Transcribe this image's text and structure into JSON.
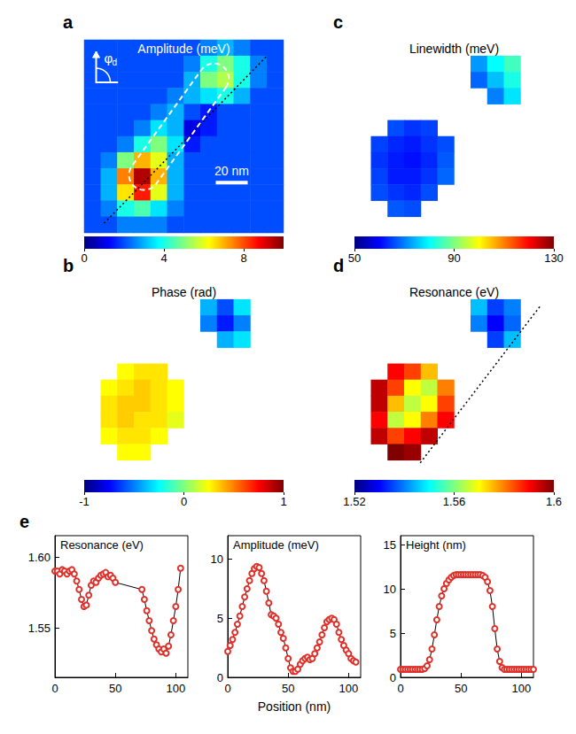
{
  "chart_data": [
    {
      "type": "heatmap",
      "panel": "a",
      "title": "Amplitude (meV)",
      "annotations": [
        "φd",
        "20 nm"
      ],
      "colorbar_range": [
        0,
        10
      ],
      "colorbar_ticks": [
        0,
        4,
        8
      ],
      "cells": [
        [
          2,
          2,
          2,
          2,
          2,
          2,
          2,
          2.5,
          3,
          2.5,
          2,
          2
        ],
        [
          2,
          2,
          2,
          2,
          2,
          2,
          2.5,
          4,
          5,
          4,
          2.5,
          2
        ],
        [
          2,
          2,
          2,
          2,
          2,
          2,
          3,
          5,
          5.5,
          4,
          2.5,
          2
        ],
        [
          2,
          2,
          2,
          2,
          2,
          2.5,
          3,
          3.5,
          4,
          3,
          2,
          2
        ],
        [
          2,
          2,
          2,
          2,
          2.5,
          3,
          2,
          1.5,
          2,
          2,
          2,
          2
        ],
        [
          2,
          2,
          2,
          2.5,
          3.5,
          3,
          1,
          1.5,
          2,
          2,
          2,
          2
        ],
        [
          2,
          2,
          2.5,
          4,
          5,
          3.5,
          1.5,
          2,
          2,
          2,
          2,
          2
        ],
        [
          2,
          2.5,
          5,
          7,
          6,
          3,
          2,
          2,
          2,
          2,
          2,
          2
        ],
        [
          2,
          3,
          7.5,
          9.5,
          7,
          3,
          2,
          2,
          2,
          2,
          2,
          2
        ],
        [
          2,
          3,
          6.5,
          8.5,
          6,
          3,
          2,
          2,
          2,
          2,
          2,
          2
        ],
        [
          2,
          2.5,
          4,
          4.5,
          3.5,
          2.5,
          2,
          2,
          2,
          2,
          2,
          2
        ],
        [
          2,
          2,
          2.5,
          2.5,
          2.5,
          2,
          2,
          2,
          2,
          2,
          2,
          2
        ]
      ]
    },
    {
      "type": "heatmap",
      "panel": "b",
      "title": "Phase (rad)",
      "colorbar_range": [
        -1,
        1
      ],
      "colorbar_ticks": [
        -1,
        0,
        1
      ],
      "cells": [
        [
          null,
          null,
          null,
          null,
          null,
          null,
          null,
          null,
          null,
          null,
          null,
          null
        ],
        [
          null,
          null,
          null,
          null,
          null,
          null,
          null,
          -0.4,
          -0.6,
          -0.3,
          null,
          null
        ],
        [
          null,
          null,
          null,
          null,
          null,
          null,
          null,
          -0.5,
          -0.7,
          -0.5,
          null,
          null
        ],
        [
          null,
          null,
          null,
          null,
          null,
          null,
          null,
          null,
          -0.4,
          -0.3,
          null,
          null
        ],
        [
          null,
          null,
          null,
          null,
          null,
          null,
          null,
          null,
          null,
          null,
          null,
          null
        ],
        [
          null,
          null,
          0.25,
          0.3,
          0.3,
          null,
          null,
          null,
          null,
          null,
          null,
          null
        ],
        [
          null,
          0.25,
          0.3,
          0.35,
          0.3,
          0.25,
          null,
          null,
          null,
          null,
          null,
          null
        ],
        [
          null,
          0.3,
          0.35,
          0.35,
          0.3,
          0.25,
          null,
          null,
          null,
          null,
          null,
          null
        ],
        [
          null,
          0.3,
          0.35,
          0.3,
          0.3,
          0.2,
          null,
          null,
          null,
          null,
          null,
          null
        ],
        [
          null,
          0.25,
          0.3,
          0.3,
          0.25,
          null,
          null,
          null,
          null,
          null,
          null,
          null
        ],
        [
          null,
          null,
          0.25,
          0.25,
          null,
          null,
          null,
          null,
          null,
          null,
          null,
          null
        ],
        [
          null,
          null,
          null,
          null,
          null,
          null,
          null,
          null,
          null,
          null,
          null,
          null
        ]
      ]
    },
    {
      "type": "heatmap",
      "panel": "c",
      "title": "Linewidth (meV)",
      "colorbar_range": [
        50,
        130
      ],
      "colorbar_ticks": [
        50,
        90,
        130
      ],
      "cells": [
        [
          null,
          null,
          null,
          null,
          null,
          null,
          null,
          null,
          null,
          null,
          null,
          null
        ],
        [
          null,
          null,
          null,
          null,
          null,
          null,
          null,
          72,
          80,
          85,
          null,
          null
        ],
        [
          null,
          null,
          null,
          null,
          null,
          null,
          null,
          68,
          75,
          82,
          null,
          null
        ],
        [
          null,
          null,
          null,
          null,
          null,
          null,
          null,
          null,
          70,
          78,
          null,
          null
        ],
        [
          null,
          null,
          null,
          null,
          null,
          null,
          null,
          null,
          null,
          null,
          null,
          null
        ],
        [
          null,
          null,
          66,
          64,
          65,
          null,
          null,
          null,
          null,
          null,
          null,
          null
        ],
        [
          null,
          65,
          63,
          62,
          64,
          66,
          null,
          null,
          null,
          null,
          null,
          null
        ],
        [
          null,
          64,
          62,
          61,
          63,
          67,
          null,
          null,
          null,
          null,
          null,
          null
        ],
        [
          null,
          65,
          62,
          62,
          64,
          68,
          null,
          null,
          null,
          null,
          null,
          null
        ],
        [
          null,
          66,
          64,
          63,
          66,
          null,
          null,
          null,
          null,
          null,
          null,
          null
        ],
        [
          null,
          null,
          67,
          66,
          null,
          null,
          null,
          null,
          null,
          null,
          null,
          null
        ],
        [
          null,
          null,
          null,
          null,
          null,
          null,
          null,
          null,
          null,
          null,
          null,
          null
        ]
      ]
    },
    {
      "type": "heatmap",
      "panel": "d",
      "title": "Resonance (eV)",
      "colorbar_range": [
        1.52,
        1.6
      ],
      "colorbar_ticks": [
        1.52,
        1.56,
        1.6
      ],
      "cells": [
        [
          null,
          null,
          null,
          null,
          null,
          null,
          null,
          null,
          null,
          null,
          null,
          null
        ],
        [
          null,
          null,
          null,
          null,
          null,
          null,
          null,
          1.545,
          1.535,
          1.54,
          null,
          null
        ],
        [
          null,
          null,
          null,
          null,
          null,
          null,
          null,
          1.54,
          1.53,
          1.538,
          null,
          null
        ],
        [
          null,
          null,
          null,
          null,
          null,
          null,
          null,
          null,
          1.535,
          1.545,
          null,
          null
        ],
        [
          null,
          null,
          null,
          null,
          null,
          null,
          null,
          null,
          null,
          null,
          null,
          null
        ],
        [
          null,
          null,
          1.59,
          1.585,
          1.575,
          null,
          null,
          null,
          null,
          null,
          null,
          null
        ],
        [
          null,
          1.595,
          1.585,
          1.57,
          1.565,
          1.58,
          null,
          null,
          null,
          null,
          null,
          null
        ],
        [
          null,
          1.595,
          1.575,
          1.565,
          1.57,
          1.585,
          null,
          null,
          null,
          null,
          null,
          null
        ],
        [
          null,
          1.59,
          1.565,
          1.57,
          1.58,
          1.59,
          null,
          null,
          null,
          null,
          null,
          null
        ],
        [
          null,
          1.595,
          1.585,
          1.59,
          1.595,
          null,
          null,
          null,
          null,
          null,
          null,
          null
        ],
        [
          null,
          null,
          1.6,
          1.598,
          null,
          null,
          null,
          null,
          null,
          null,
          null,
          null
        ],
        [
          null,
          null,
          null,
          null,
          null,
          null,
          null,
          null,
          null,
          null,
          null,
          null
        ]
      ]
    },
    {
      "type": "line",
      "panel": "e",
      "title": "Resonance (eV)",
      "color": "#e0302a",
      "marker": "circle",
      "xlim": [
        0,
        110
      ],
      "xticks": [
        0,
        50,
        100
      ],
      "ylim": [
        1.515,
        1.615
      ],
      "yticks": [
        1.55,
        {
          "value": 1.6,
          "label": "1.60"
        }
      ],
      "x": [
        0,
        2,
        4,
        6,
        8,
        10,
        12,
        14,
        16,
        18,
        20,
        22,
        24,
        26,
        28,
        30,
        32,
        34,
        36,
        38,
        40,
        42,
        44,
        46,
        48,
        50,
        72,
        74,
        76,
        78,
        80,
        82,
        84,
        86,
        88,
        90,
        92,
        94,
        96,
        98,
        100,
        102,
        104
      ],
      "values": [
        1.59,
        1.59,
        1.588,
        1.591,
        1.59,
        1.588,
        1.59,
        1.591,
        1.588,
        1.583,
        1.577,
        1.57,
        1.565,
        1.566,
        1.573,
        1.58,
        1.583,
        1.582,
        1.585,
        1.587,
        1.588,
        1.589,
        1.586,
        1.587,
        1.585,
        1.582,
        1.577,
        1.57,
        1.562,
        1.555,
        1.548,
        1.542,
        1.538,
        1.535,
        1.533,
        1.535,
        1.532,
        1.537,
        1.545,
        1.555,
        1.565,
        1.577,
        1.592
      ]
    },
    {
      "type": "line",
      "title": "Amplitude (meV)",
      "xlabel": "Position (nm)",
      "color": "#e0302a",
      "marker": "circle",
      "xlim": [
        0,
        110
      ],
      "xticks": [
        0,
        50,
        100
      ],
      "ylim": [
        0,
        12
      ],
      "yticks": [
        0,
        5,
        10
      ],
      "x": [
        0,
        2,
        4,
        6,
        8,
        10,
        12,
        14,
        16,
        18,
        20,
        22,
        24,
        26,
        28,
        30,
        32,
        34,
        36,
        38,
        40,
        42,
        44,
        46,
        48,
        50,
        52,
        54,
        56,
        58,
        60,
        62,
        64,
        66,
        68,
        70,
        72,
        74,
        76,
        78,
        80,
        82,
        84,
        86,
        88,
        90,
        92,
        94,
        96,
        98,
        100,
        102,
        104,
        106
      ],
      "values": [
        2.2,
        2.7,
        3.2,
        3.8,
        4.5,
        5.2,
        6,
        6.8,
        7.5,
        8.2,
        8.8,
        9.2,
        9.4,
        9.3,
        8.8,
        8.2,
        7.3,
        6.3,
        5.3,
        5.2,
        5,
        4.5,
        3.8,
        3.3,
        2.5,
        1.6,
        0.8,
        0.5,
        0.5,
        0.7,
        1.1,
        1.4,
        1.6,
        1.7,
        1.5,
        1.6,
        2,
        2.5,
        3,
        3.6,
        4.2,
        4.7,
        4.9,
        5,
        4.9,
        4.5,
        3.8,
        3.2,
        2.7,
        2.3,
        2,
        1.6,
        1.4,
        1.3
      ]
    },
    {
      "type": "line",
      "title": "Height (nm)",
      "color": "#e0302a",
      "marker": "circle",
      "xlim": [
        0,
        110
      ],
      "xticks": [
        0,
        50,
        100
      ],
      "ylim": [
        0,
        16
      ],
      "yticks": [
        0,
        5,
        10,
        15
      ],
      "x": [
        0,
        2,
        4,
        6,
        8,
        10,
        12,
        14,
        16,
        18,
        20,
        22,
        24,
        26,
        28,
        30,
        32,
        34,
        36,
        38,
        40,
        42,
        44,
        46,
        48,
        50,
        52,
        54,
        56,
        58,
        60,
        62,
        64,
        66,
        68,
        70,
        72,
        74,
        76,
        78,
        80,
        82,
        84,
        86,
        88,
        90,
        92,
        94,
        96,
        98,
        100,
        102,
        104,
        106,
        108,
        110
      ],
      "values": [
        0.9,
        0.9,
        0.9,
        0.9,
        0.9,
        0.9,
        0.9,
        0.9,
        0.9,
        0.9,
        1,
        1.3,
        2,
        3.2,
        4.8,
        6.5,
        8,
        9.2,
        10,
        10.6,
        11,
        11.3,
        11.5,
        11.6,
        11.6,
        11.6,
        11.6,
        11.6,
        11.6,
        11.6,
        11.6,
        11.6,
        11.6,
        11.6,
        11.5,
        11.3,
        10.8,
        9.8,
        8,
        5.5,
        3.2,
        1.8,
        1.1,
        0.9,
        0.9,
        0.9,
        0.9,
        0.9,
        0.9,
        0.9,
        0.9,
        0.9,
        0.9,
        0.9,
        0.9,
        0.9
      ]
    }
  ]
}
